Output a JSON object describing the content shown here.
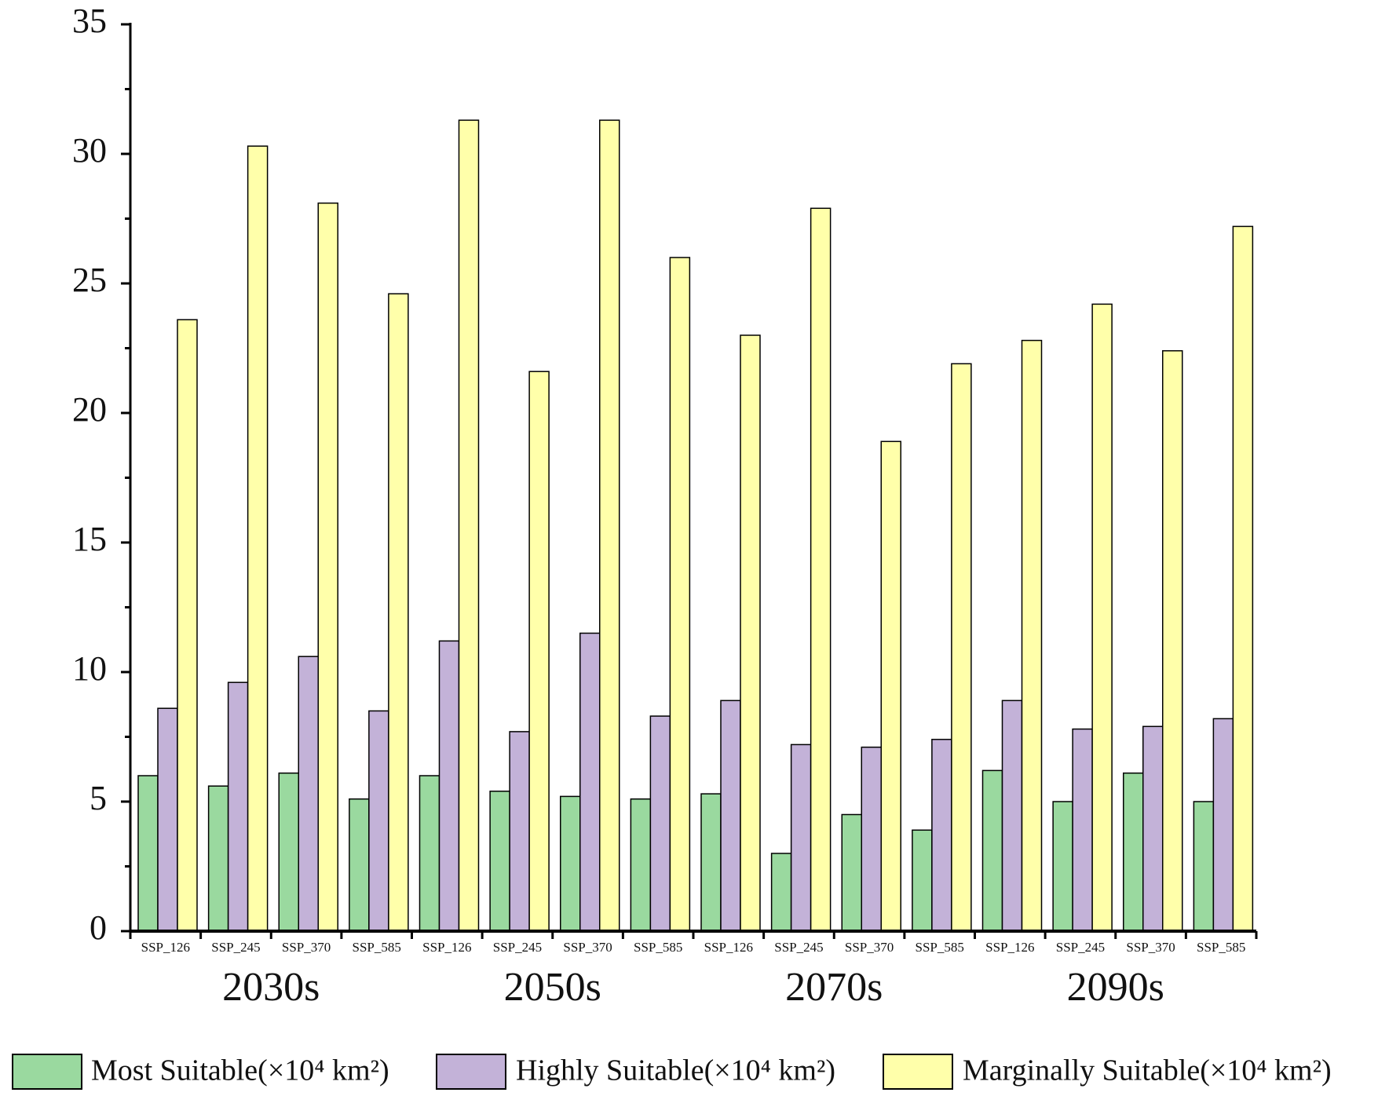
{
  "chart_data": {
    "type": "grouped_bar",
    "categories": [
      "SSP_126",
      "SSP_245",
      "SSP_370",
      "SSP_585",
      "SSP_126",
      "SSP_245",
      "SSP_370",
      "SSP_585",
      "SSP_126",
      "SSP_245",
      "SSP_370",
      "SSP_585",
      "SSP_126",
      "SSP_245",
      "SSP_370",
      "SSP_585"
    ],
    "groups": [
      "2030s",
      "2050s",
      "2070s",
      "2090s"
    ],
    "series": [
      {
        "name": "Most Suitable(×10⁴ km²)",
        "color": "#9ad99f",
        "values": [
          6.0,
          5.6,
          6.1,
          5.1,
          6.0,
          5.4,
          5.2,
          5.1,
          5.3,
          3.0,
          4.5,
          3.9,
          6.2,
          5.0,
          6.1,
          5.0
        ]
      },
      {
        "name": "Highly Suitable(×10⁴ km²)",
        "color": "#c3b2d8",
        "values": [
          8.6,
          9.6,
          10.6,
          8.5,
          11.2,
          7.7,
          11.5,
          8.3,
          8.9,
          7.2,
          7.1,
          7.4,
          8.9,
          7.8,
          7.9,
          8.2
        ]
      },
      {
        "name": "Marginally Suitable(×10⁴ km²)",
        "color": "#ffffaa",
        "values": [
          23.6,
          30.3,
          28.1,
          24.6,
          31.3,
          21.6,
          31.3,
          26.0,
          23.0,
          27.9,
          18.9,
          21.9,
          22.8,
          24.2,
          22.4,
          27.2
        ]
      }
    ],
    "ylim": [
      0,
      35
    ],
    "yticks": [
      0,
      5,
      10,
      15,
      20,
      25,
      30,
      35
    ],
    "yminorticks": [
      2.5,
      7.5,
      12.5,
      17.5,
      22.5,
      27.5,
      32.5
    ],
    "grid": false,
    "legend": "bottom"
  }
}
